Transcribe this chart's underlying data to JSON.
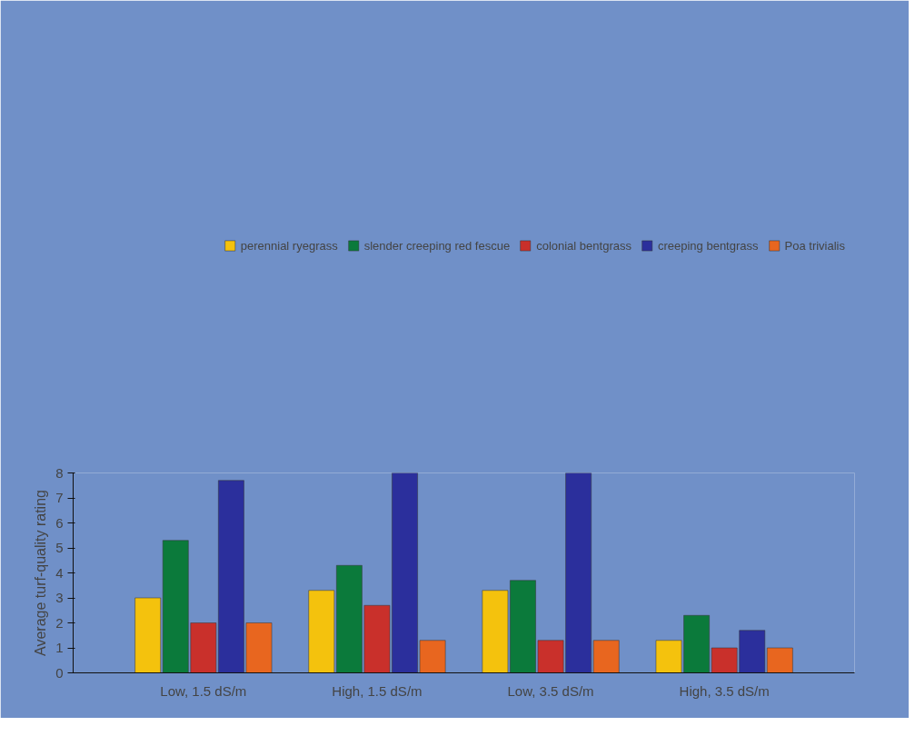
{
  "chart_data": {
    "type": "bar",
    "ylabel": "Average turf-quality rating",
    "categories": [
      "Low, 1.5 dS/m",
      "High, 1.5 dS/m",
      "Low, 3.5 dS/m",
      "High, 3.5 dS/m"
    ],
    "series": [
      {
        "name": "perennial ryegrass",
        "color": "#f4c20d",
        "values": [
          3.0,
          3.3,
          3.3,
          1.3
        ]
      },
      {
        "name": "slender creeping red fescue",
        "color": "#0b7a3b",
        "values": [
          5.3,
          4.3,
          3.7,
          2.3
        ]
      },
      {
        "name": "colonial bentgrass",
        "color": "#c9302b",
        "values": [
          2.0,
          2.7,
          1.3,
          1.0
        ]
      },
      {
        "name": "creeping bentgrass",
        "color": "#2b2f9c",
        "values": [
          7.7,
          8.0,
          8.0,
          1.7
        ]
      },
      {
        "name": "Poa trivialis",
        "color": "#e8661f",
        "values": [
          2.0,
          1.3,
          1.3,
          1.0
        ]
      }
    ],
    "ylim": [
      0,
      8
    ],
    "yticks": [
      0,
      1,
      2,
      3,
      4,
      5,
      6,
      7,
      8
    ],
    "grid": false,
    "legend": "top"
  }
}
